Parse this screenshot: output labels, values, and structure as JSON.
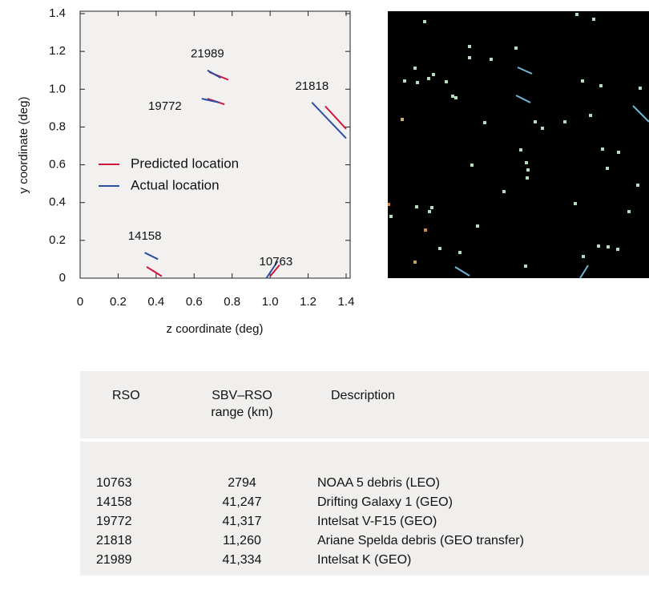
{
  "chart_data": {
    "type": "segments",
    "xlabel": "z coordinate (deg)",
    "ylabel": "y coordinate (deg)",
    "xlim": [
      0,
      1.4
    ],
    "ylim": [
      0,
      1.4
    ],
    "xticks": [
      0,
      0.2,
      0.4,
      0.6,
      0.8,
      {
        "value": 1,
        "label": "1.0"
      },
      1.2,
      1.4
    ],
    "yticks": [
      0,
      0.2,
      0.4,
      0.6,
      0.8,
      {
        "value": 1,
        "label": "1.0"
      },
      1.2,
      1.4
    ],
    "objects": [
      "21989",
      "19772",
      "21818",
      "14158",
      "10763"
    ],
    "series": [
      {
        "name": "Predicted location",
        "color": "#d0163e",
        "x": [
          [
            0.68,
            0.78
          ],
          [
            0.67,
            0.76
          ],
          [
            1.29,
            1.4
          ],
          [
            0.35,
            0.43
          ],
          [
            1.0,
            1.05
          ]
        ],
        "values": [
          [
            1.09,
            1.05
          ],
          [
            0.95,
            0.92
          ],
          [
            0.91,
            0.79
          ],
          [
            0.06,
            0.01
          ],
          [
            0.01,
            0.07
          ]
        ]
      },
      {
        "name": "Actual location",
        "color": "#2b4fa2",
        "x": [
          [
            0.67,
            0.74
          ],
          [
            0.64,
            0.73
          ],
          [
            1.22,
            1.4
          ],
          [
            0.34,
            0.41
          ],
          [
            0.98,
            1.04
          ]
        ],
        "values": [
          [
            1.1,
            1.06
          ],
          [
            0.95,
            0.93
          ],
          [
            0.93,
            0.74
          ],
          [
            0.135,
            0.1
          ],
          [
            0.0,
            0.09
          ]
        ]
      }
    ],
    "legend": "left"
  },
  "table": {
    "header": [
      "RSO",
      "SBV–RSO\nrange (km)",
      "Description"
    ],
    "rows": [
      [
        "10763",
        "2794",
        "NOAA 5 debris (LEO)"
      ],
      [
        "14158",
        "41,247",
        "Drifting Galaxy 1 (GEO)"
      ],
      [
        "19772",
        "41,317",
        "Intelsat V-F15 (GEO)"
      ],
      [
        "21818",
        "11,260",
        "Ariane Spelda debris (GEO transfer)"
      ],
      [
        "21989",
        "41,334",
        "Intelsat K (GEO)"
      ]
    ]
  }
}
